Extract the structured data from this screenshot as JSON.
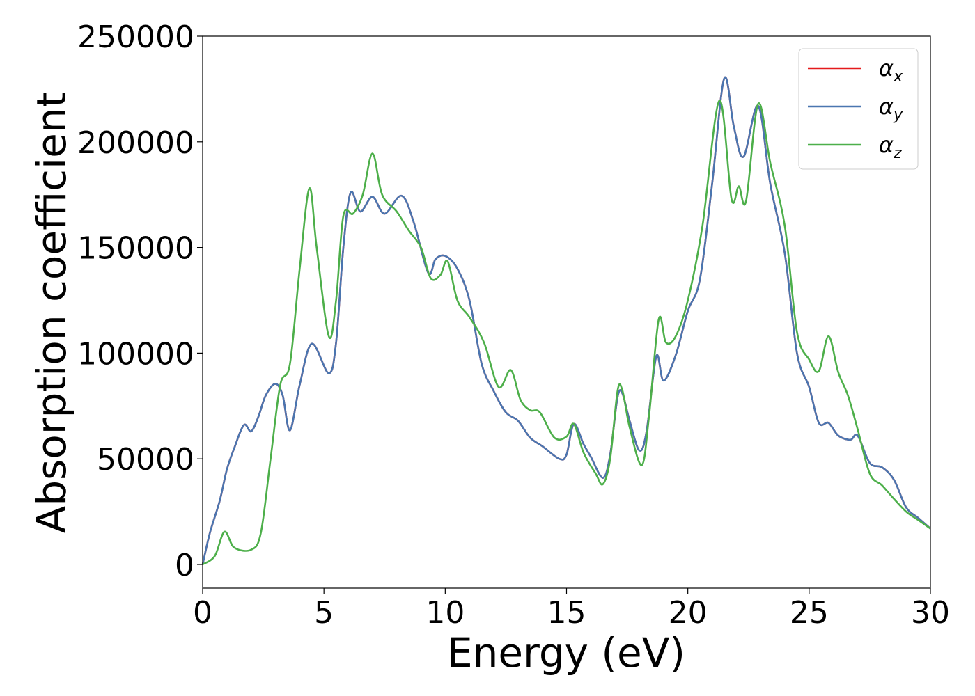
{
  "chart_data": {
    "type": "line",
    "xlabel": "Energy (eV)",
    "ylabel": "Absorption coefficient",
    "xlim": [
      0,
      30
    ],
    "xticks": [
      0,
      5,
      10,
      15,
      20,
      25,
      30
    ],
    "ylim": [
      -11200,
      250000
    ],
    "yticks": [
      0,
      50000,
      100000,
      150000,
      200000,
      250000
    ],
    "legend": "upper right",
    "series": [
      {
        "name": "αx",
        "color": "#e41a1c",
        "x": [
          0,
          0.3,
          0.7,
          1.0,
          1.3,
          1.7,
          2.0,
          2.3,
          2.6,
          3.0,
          3.3,
          3.6,
          4.0,
          4.5,
          5.2,
          5.5,
          5.8,
          6.1,
          6.5,
          7.0,
          7.5,
          8.2,
          8.7,
          9.3,
          9.6,
          10.0,
          10.5,
          11.0,
          11.5,
          12.0,
          12.5,
          13.0,
          13.5,
          14.0,
          14.7,
          15.0,
          15.3,
          15.7,
          16.0,
          16.5,
          16.8,
          17.1,
          17.3,
          17.6,
          18.0,
          18.3,
          18.7,
          19.0,
          19.5,
          20.0,
          20.5,
          21.0,
          21.5,
          21.9,
          22.3,
          22.9,
          23.4,
          24.0,
          24.5,
          25.0,
          25.4,
          25.8,
          26.2,
          26.7,
          27.0,
          27.5,
          28.0,
          28.5,
          29.0,
          29.5,
          30.0
        ],
        "values": [
          0,
          15000,
          30000,
          45000,
          55000,
          66000,
          63000,
          70000,
          80000,
          85500,
          80000,
          63500,
          85000,
          104500,
          90500,
          105000,
          150000,
          176000,
          167000,
          174000,
          166000,
          174500,
          162000,
          138000,
          144500,
          146000,
          140000,
          125000,
          95000,
          82000,
          72000,
          68000,
          60000,
          56000,
          50000,
          52000,
          66500,
          57000,
          51000,
          41000,
          52000,
          79000,
          81000,
          68000,
          54000,
          63000,
          98500,
          87000,
          99000,
          120000,
          135000,
          180000,
          230000,
          207000,
          193000,
          217000,
          180000,
          147000,
          100000,
          84000,
          67000,
          67000,
          61000,
          59000,
          61000,
          48000,
          46000,
          40000,
          27000,
          22000,
          17000
        ]
      },
      {
        "name": "αy",
        "color": "#4a76b0",
        "x": [
          0,
          0.3,
          0.7,
          1.0,
          1.3,
          1.7,
          2.0,
          2.3,
          2.6,
          3.0,
          3.3,
          3.6,
          4.0,
          4.5,
          5.2,
          5.5,
          5.8,
          6.1,
          6.5,
          7.0,
          7.5,
          8.2,
          8.7,
          9.3,
          9.6,
          10.0,
          10.5,
          11.0,
          11.5,
          12.0,
          12.5,
          13.0,
          13.5,
          14.0,
          14.7,
          15.0,
          15.3,
          15.7,
          16.0,
          16.5,
          16.8,
          17.1,
          17.3,
          17.6,
          18.0,
          18.3,
          18.7,
          19.0,
          19.5,
          20.0,
          20.5,
          21.0,
          21.5,
          21.9,
          22.3,
          22.9,
          23.4,
          24.0,
          24.5,
          25.0,
          25.4,
          25.8,
          26.2,
          26.7,
          27.0,
          27.5,
          28.0,
          28.5,
          29.0,
          29.5,
          30.0
        ],
        "values": [
          0,
          15000,
          30000,
          45000,
          55000,
          66000,
          63000,
          70000,
          80000,
          85500,
          80000,
          63500,
          85000,
          104500,
          90500,
          105000,
          150000,
          176000,
          167000,
          174000,
          166000,
          174500,
          162000,
          138000,
          144500,
          146000,
          140000,
          125000,
          95000,
          82000,
          72000,
          68000,
          60000,
          56000,
          50000,
          52000,
          66500,
          57000,
          51000,
          41000,
          52000,
          79000,
          81000,
          68000,
          54000,
          63000,
          98500,
          87000,
          99000,
          120000,
          135000,
          180000,
          230000,
          207000,
          193000,
          217000,
          180000,
          147000,
          100000,
          84000,
          67000,
          67000,
          61000,
          59000,
          61000,
          48000,
          46000,
          40000,
          27000,
          22000,
          17000
        ]
      },
      {
        "name": "αz",
        "color": "#4daf4a",
        "x": [
          0,
          0.5,
          0.9,
          1.3,
          2.0,
          2.4,
          2.8,
          3.2,
          3.6,
          4.0,
          4.4,
          4.7,
          5.2,
          5.5,
          5.8,
          6.2,
          6.6,
          7.0,
          7.4,
          8.0,
          8.5,
          9.0,
          9.4,
          9.8,
          10.1,
          10.5,
          11.0,
          11.6,
          12.2,
          12.7,
          13.1,
          13.5,
          13.9,
          14.5,
          15.0,
          15.3,
          15.7,
          16.2,
          16.5,
          16.8,
          17.1,
          17.3,
          17.6,
          18.1,
          18.4,
          18.8,
          19.1,
          19.5,
          20.0,
          20.6,
          21.3,
          21.8,
          22.1,
          22.4,
          22.9,
          23.4,
          24.0,
          24.5,
          25.0,
          25.4,
          25.8,
          26.2,
          26.6,
          27.0,
          27.5,
          28.0,
          28.5,
          29.0,
          29.5,
          30.0
        ],
        "values": [
          0,
          4000,
          15500,
          8000,
          7000,
          15000,
          50000,
          85000,
          95000,
          140000,
          178000,
          150000,
          108000,
          125000,
          165000,
          166000,
          175000,
          194500,
          175000,
          167000,
          158000,
          150000,
          135500,
          137000,
          143500,
          125000,
          117000,
          105000,
          84000,
          92000,
          78000,
          73000,
          72000,
          60000,
          60500,
          66500,
          53000,
          43000,
          38000,
          50000,
          82000,
          82500,
          65000,
          47000,
          70000,
          116000,
          105000,
          108000,
          125000,
          160000,
          219500,
          173000,
          179000,
          172000,
          218000,
          190000,
          160000,
          110000,
          97000,
          91500,
          108000,
          91000,
          80000,
          64000,
          43000,
          37500,
          31000,
          25000,
          21000,
          17000
        ]
      }
    ]
  }
}
